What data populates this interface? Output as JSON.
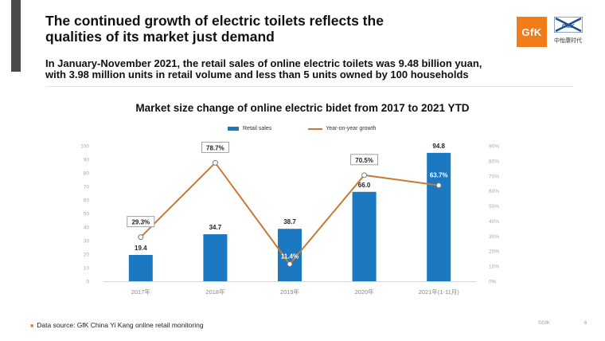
{
  "header": {
    "title_line1": "The continued growth of electric toilets reflects the",
    "title_line2": "qualities of its market just demand",
    "subtitle_line1": "In January-November 2021, the retail sales of online electric toilets was 9.48 billion yuan,",
    "subtitle_line2": "with 3.98 million units in retail volume and less than 5 units owned by 100 households"
  },
  "logos": {
    "gfk_text": "GfK",
    "cmk_text": "CMK",
    "cmk_cn": "中怡康时代",
    "gfk_color": "#f07d1a"
  },
  "chart_data": {
    "type": "bar",
    "title": "Market size change of online electric bidet from 2017 to 2021 YTD",
    "categories": [
      "2017年",
      "2018年",
      "2019年",
      "2020年",
      "2021年(1-11月)"
    ],
    "series": [
      {
        "name": "Retail sales",
        "type": "bar",
        "values": [
          19.4,
          34.7,
          38.7,
          66.0,
          94.8
        ],
        "labels": [
          "19.4",
          "34.7",
          "38.7",
          "66.0",
          "94.8"
        ],
        "color": "#1c78c0"
      },
      {
        "name": "Year-on-year growth",
        "type": "line",
        "axis": "right",
        "values": [
          29.3,
          78.7,
          11.4,
          70.5,
          63.7
        ],
        "labels": [
          "29.3%",
          "78.7%",
          "11.4%",
          "70.5%",
          "63.7%"
        ],
        "color": "#c87a35"
      }
    ],
    "ylim_left": [
      0,
      100
    ],
    "yticks_left": [
      "0",
      "10",
      "20",
      "30",
      "40",
      "50",
      "60",
      "70",
      "80",
      "90",
      "100"
    ],
    "ylim_right": [
      0,
      90
    ],
    "yticks_right": [
      "0%",
      "10%",
      "20%",
      "30%",
      "40%",
      "50%",
      "60%",
      "70%",
      "80%",
      "90%"
    ],
    "grid": false,
    "legend_position": "top"
  },
  "footer": {
    "note": "Data source: GfK China Yi Kang online retail monitoring",
    "copyright": "©GfK",
    "page": "6"
  }
}
